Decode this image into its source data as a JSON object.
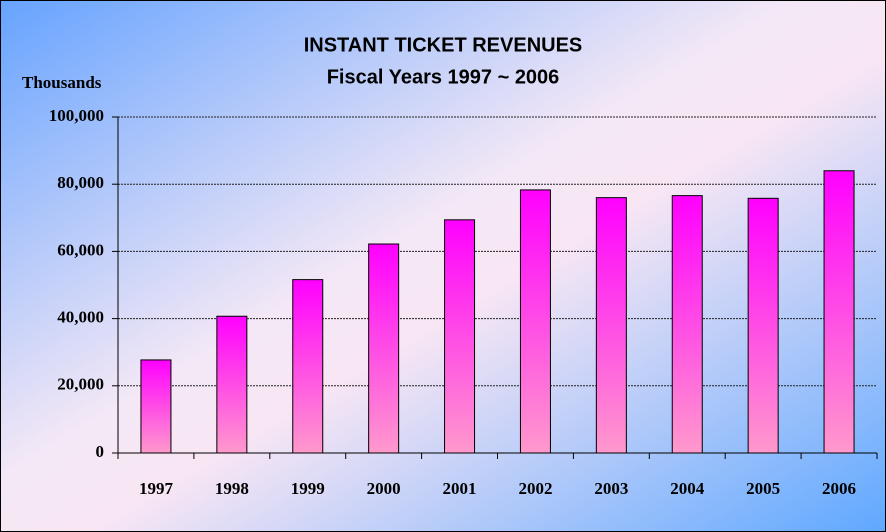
{
  "chart_data": {
    "type": "bar",
    "title": "INSTANT TICKET REVENUES",
    "subtitle": "Fiscal Years 1997 ~ 2006",
    "y_label": "Thousands",
    "categories": [
      "1997",
      "1998",
      "1999",
      "2000",
      "2001",
      "2002",
      "2003",
      "2004",
      "2005",
      "2006"
    ],
    "values": [
      27700,
      40700,
      51600,
      62200,
      69400,
      78300,
      76000,
      76600,
      75800,
      84000
    ],
    "color": "#ff00ff",
    "ylim": [
      0,
      100000
    ],
    "yticks": [
      0,
      {
        "value": 20000,
        "label": "20,000"
      },
      {
        "value": 40000,
        "label": "40,000"
      },
      {
        "value": 60000,
        "label": "60,000"
      },
      {
        "value": 80000,
        "label": "80,000"
      },
      {
        "value": 100000,
        "label": "100,000"
      }
    ],
    "grid": true
  }
}
